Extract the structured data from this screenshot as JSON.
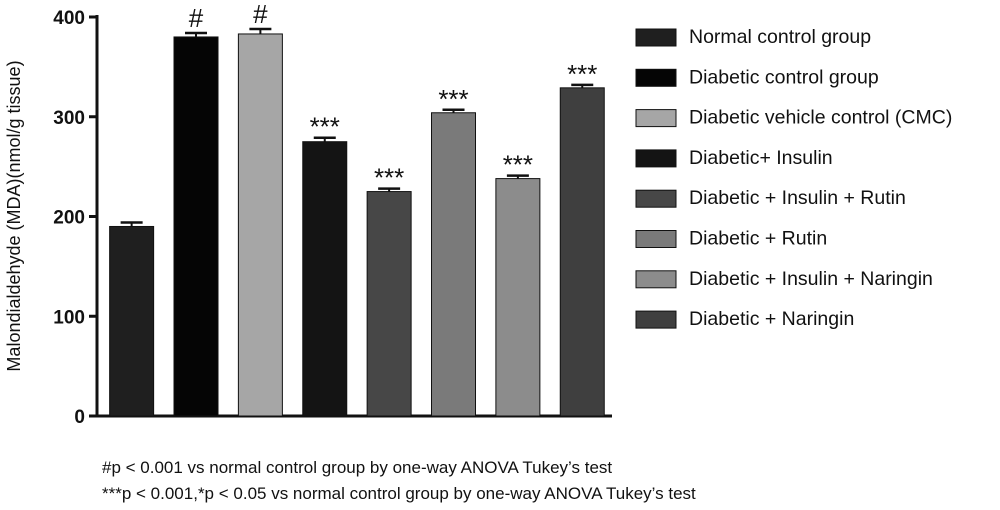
{
  "chart_data": {
    "type": "bar",
    "ylabel": "Malondialdehyde (MDA)(nmol/g tissue)",
    "xlabel": "",
    "ylim": [
      0,
      400
    ],
    "yticks": [
      "0",
      "100",
      "200",
      "300",
      "400"
    ],
    "legend_position": "right",
    "series": [
      {
        "name": "Normal control group",
        "value": 190,
        "error": 4,
        "annotation": "",
        "color": "#1f1f1f"
      },
      {
        "name": "Diabetic control group",
        "value": 380,
        "error": 4,
        "annotation": "#",
        "color": "#050505"
      },
      {
        "name": "Diabetic vehicle control (CMC)",
        "value": 383,
        "error": 5,
        "annotation": "#",
        "color": "#a6a6a6"
      },
      {
        "name": "Diabetic+ Insulin",
        "value": 275,
        "error": 4,
        "annotation": "***",
        "color": "#141414"
      },
      {
        "name": "Diabetic + Insulin + Rutin",
        "value": 225,
        "error": 3,
        "annotation": "***",
        "color": "#474747"
      },
      {
        "name": "Diabetic + Rutin",
        "value": 304,
        "error": 3,
        "annotation": "***",
        "color": "#7a7a7a"
      },
      {
        "name": "Diabetic + Insulin + Naringin",
        "value": 238,
        "error": 3,
        "annotation": "***",
        "color": "#8c8c8c"
      },
      {
        "name": "Diabetic + Naringin",
        "value": 329,
        "error": 3,
        "annotation": "***",
        "color": "#3f3f3f"
      }
    ]
  },
  "footnotes": [
    "#p < 0.001 vs normal control group by one-way ANOVA Tukey’s test",
    "***p < 0.001,*p < 0.05 vs normal control group by one-way ANOVA Tukey’s test"
  ]
}
